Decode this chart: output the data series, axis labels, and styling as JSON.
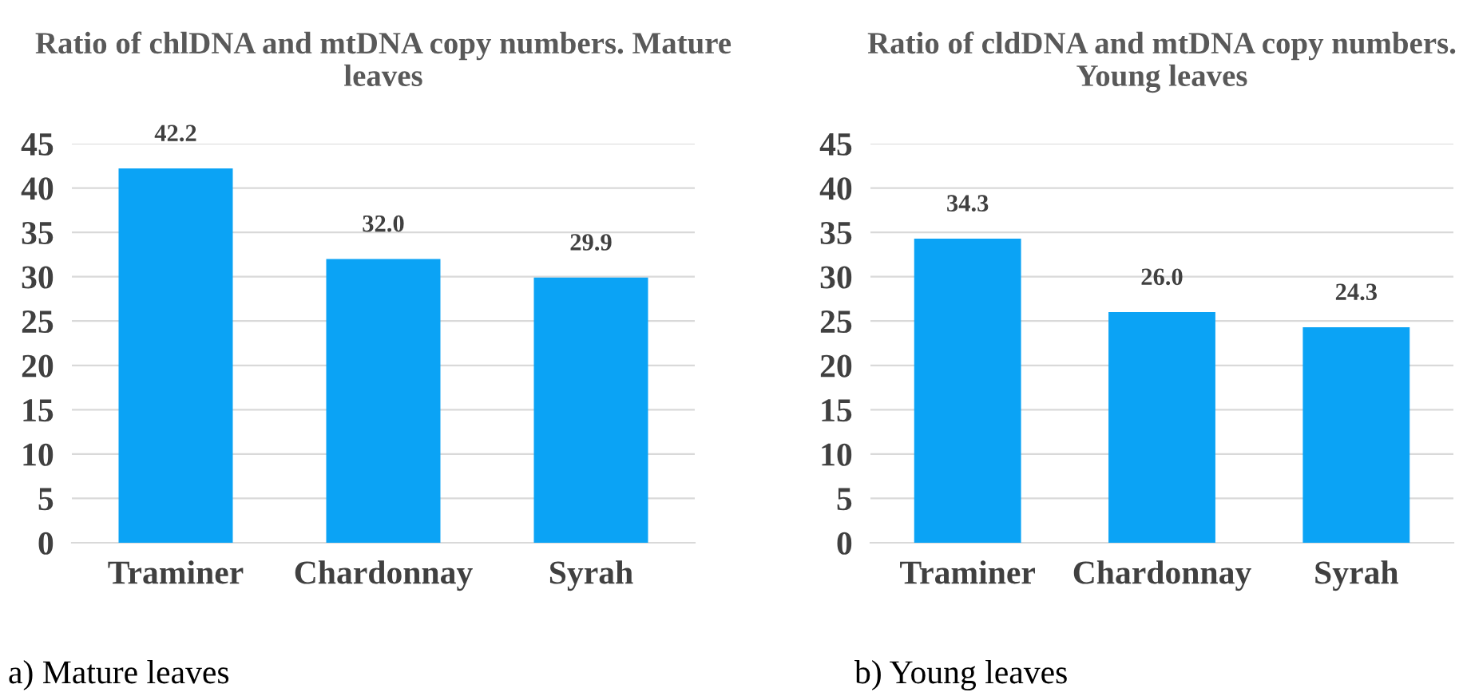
{
  "chart_data": [
    {
      "type": "bar",
      "title": "Ratio of chlDNA and mtDNA copy numbers. Mature leaves",
      "categories": [
        "Traminer",
        "Chardonnay",
        "Syrah"
      ],
      "values": [
        42.2,
        32.0,
        29.9
      ],
      "value_labels": [
        "42.2",
        "32.0",
        "29.9"
      ],
      "color": "#0ba3f5",
      "ylim": [
        0,
        45
      ],
      "yticks": [
        0,
        5,
        10,
        15,
        20,
        25,
        30,
        35,
        40,
        45
      ],
      "grid": "y",
      "annotations": [
        "a) Mature leaves"
      ]
    },
    {
      "type": "bar",
      "title": "Ratio of cldDNA and mtDNA copy numbers. Young leaves",
      "categories": [
        "Traminer",
        "Chardonnay",
        "Syrah"
      ],
      "values": [
        34.3,
        26.0,
        24.3
      ],
      "value_labels": [
        "34.3",
        "26.0",
        "24.3"
      ],
      "color": "#0ba3f5",
      "ylim": [
        0,
        45
      ],
      "yticks": [
        0,
        5,
        10,
        15,
        20,
        25,
        30,
        35,
        40,
        45
      ],
      "grid": "y",
      "annotations": [
        "b) Young leaves"
      ]
    }
  ]
}
